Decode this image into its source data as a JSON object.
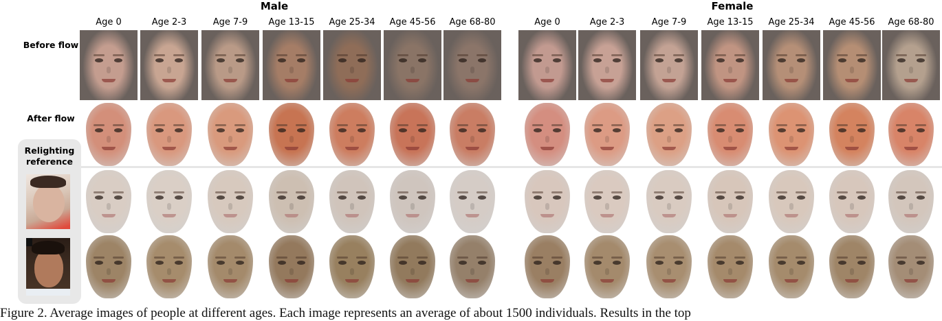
{
  "groups": {
    "male": "Male",
    "female": "Female"
  },
  "ages": [
    "Age 0",
    "Age 2-3",
    "Age 7-9",
    "Age 13-15",
    "Age 25-34",
    "Age 45-56",
    "Age 68-80"
  ],
  "row_labels": {
    "before_flow": "Before flow",
    "after_flow": "After flow",
    "relighting_line1": "Relighting",
    "relighting_line2": "reference"
  },
  "colors": {
    "before_male": [
      "#c49d8f",
      "#c8a592",
      "#b99a87",
      "#a57d66",
      "#8f6d58",
      "#8a7466",
      "#8b7569"
    ],
    "before_female": [
      "#c29a90",
      "#c7a195",
      "#c3a294",
      "#c09482",
      "#b58f77",
      "#b58e74",
      "#b4a08e"
    ],
    "after_male": [
      "#d38f7a",
      "#d9987e",
      "#d99a7d",
      "#c77452",
      "#cd7d5f",
      "#c87459",
      "#c97d64"
    ],
    "after_female": [
      "#d48e80",
      "#dc9b84",
      "#dca085",
      "#d88c72",
      "#dc9373",
      "#d4835f",
      "#d88468"
    ],
    "relight1_male": [
      "#d9cdc4",
      "#dacfc6",
      "#d7c9be",
      "#cdbfb2",
      "#d0c4bb",
      "#cfc5be",
      "#d5ccc6"
    ],
    "relight1_female": [
      "#d8c7bd",
      "#dacac0",
      "#d9cbc1",
      "#d7c6ba",
      "#d8c8bc",
      "#d7c7bc",
      "#d3c6bc"
    ],
    "relight2_male": [
      "#9d8466",
      "#a68c6c",
      "#a48a6b",
      "#94795d",
      "#98805f",
      "#927a5d",
      "#95806a"
    ],
    "relight2_female": [
      "#9a7f63",
      "#a48a6c",
      "#a88e70",
      "#a58a6b",
      "#a58b6c",
      "#9f8567",
      "#a48d76"
    ]
  },
  "caption": "Figure 2. Average images of people at different ages. Each image represents an average of about 1500 individuals. Results in the top"
}
